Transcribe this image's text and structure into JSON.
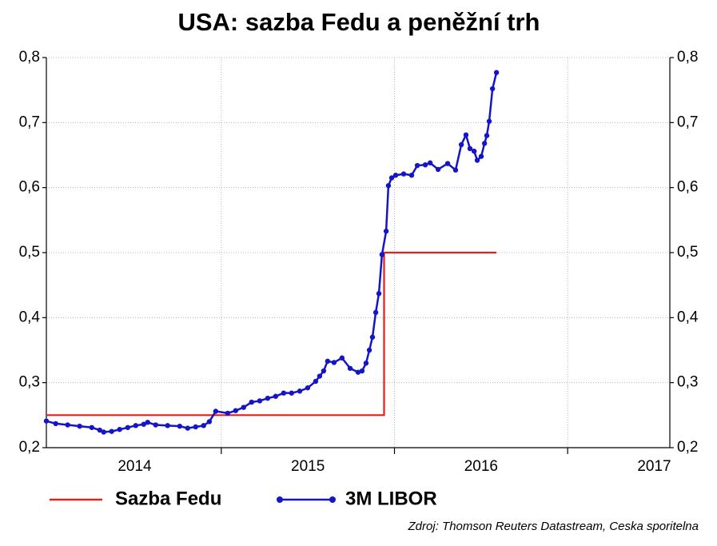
{
  "chart_data": {
    "type": "line",
    "title": "USA: sazba Fedu a peněžní trh",
    "source": "Zdroj: Thomson Reuters Datastream, Ceska sporitelna",
    "xlim": [
      2013.99,
      2017.59
    ],
    "xticks": [
      {
        "value": 2014.5,
        "label": "2014"
      },
      {
        "value": 2015.5,
        "label": "2015"
      },
      {
        "value": 2016.5,
        "label": "2016"
      },
      {
        "value": 2017.5,
        "label": "2017"
      }
    ],
    "xgrid": [
      2015,
      2016,
      2017
    ],
    "ylim": [
      0.2,
      0.8
    ],
    "yticks": [
      {
        "value": 0.2,
        "label": "0,2"
      },
      {
        "value": 0.3,
        "label": "0,3"
      },
      {
        "value": 0.4,
        "label": "0,4"
      },
      {
        "value": 0.5,
        "label": "0,5"
      },
      {
        "value": 0.6,
        "label": "0,6"
      },
      {
        "value": 0.7,
        "label": "0,7"
      },
      {
        "value": 0.8,
        "label": "0,8"
      }
    ],
    "y2lim": [
      0.2,
      0.8
    ],
    "y2ticks": [
      {
        "value": 0.2,
        "label": "0,2"
      },
      {
        "value": 0.3,
        "label": "0,3"
      },
      {
        "value": 0.4,
        "label": "0,4"
      },
      {
        "value": 0.5,
        "label": "0,5"
      },
      {
        "value": 0.6,
        "label": "0,6"
      },
      {
        "value": 0.7,
        "label": "0,7"
      },
      {
        "value": 0.8,
        "label": "0,8"
      }
    ],
    "grid": true,
    "legend": "bottom",
    "series": [
      {
        "name": "Sazba Fedu",
        "color": "#e0201c",
        "markers": false,
        "x": [
          2013.99,
          2015.94,
          2015.94,
          2016.589
        ],
        "values": [
          0.25,
          0.25,
          0.5,
          0.5
        ]
      },
      {
        "name": "3M LIBOR",
        "color": "#1414c8",
        "markers": true,
        "x": [
          2013.99,
          2014.044,
          2014.113,
          2014.182,
          2014.252,
          2014.298,
          2014.321,
          2014.367,
          2014.413,
          2014.46,
          2014.506,
          2014.552,
          2014.575,
          2014.621,
          2014.69,
          2014.76,
          2014.806,
          2014.852,
          2014.898,
          2014.931,
          2014.968,
          2015.037,
          2015.083,
          2015.129,
          2015.175,
          2015.222,
          2015.268,
          2015.314,
          2015.36,
          2015.406,
          2015.453,
          2015.499,
          2015.545,
          2015.568,
          2015.591,
          2015.614,
          2015.651,
          2015.697,
          2015.744,
          2015.79,
          2015.813,
          2015.836,
          2015.855,
          2015.873,
          2015.892,
          2015.91,
          2015.928,
          2015.952,
          2015.965,
          2015.984,
          2016.007,
          2016.053,
          2016.099,
          2016.132,
          2016.178,
          2016.206,
          2016.252,
          2016.307,
          2016.353,
          2016.386,
          2016.413,
          2016.436,
          2016.46,
          2016.478,
          2016.501,
          2016.52,
          2016.533,
          2016.547,
          2016.566,
          2016.589
        ],
        "values": [
          0.241,
          0.237,
          0.235,
          0.233,
          0.231,
          0.227,
          0.224,
          0.225,
          0.228,
          0.231,
          0.234,
          0.236,
          0.239,
          0.235,
          0.234,
          0.233,
          0.23,
          0.232,
          0.234,
          0.24,
          0.256,
          0.253,
          0.257,
          0.262,
          0.27,
          0.272,
          0.276,
          0.279,
          0.284,
          0.284,
          0.287,
          0.292,
          0.302,
          0.31,
          0.318,
          0.333,
          0.331,
          0.338,
          0.322,
          0.316,
          0.318,
          0.33,
          0.35,
          0.37,
          0.408,
          0.437,
          0.497,
          0.533,
          0.603,
          0.615,
          0.619,
          0.621,
          0.619,
          0.634,
          0.635,
          0.638,
          0.628,
          0.637,
          0.627,
          0.666,
          0.681,
          0.66,
          0.656,
          0.642,
          0.648,
          0.668,
          0.68,
          0.702,
          0.752,
          0.777
        ]
      }
    ]
  }
}
